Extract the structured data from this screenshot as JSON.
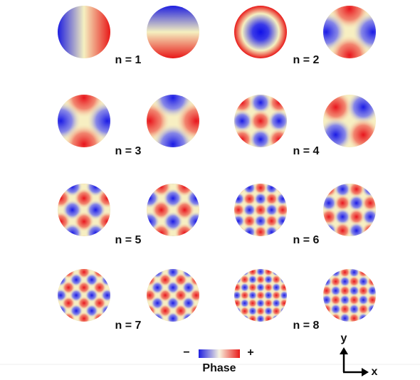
{
  "mode_labels": [
    "n = 1",
    "n = 2",
    "n = 3",
    "n = 4",
    "n = 5",
    "n = 6",
    "n = 7",
    "n = 8"
  ],
  "colorbar": {
    "minus": "−",
    "plus": "+",
    "label": "Phase"
  },
  "axes": {
    "y": "y",
    "x": "x"
  }
}
